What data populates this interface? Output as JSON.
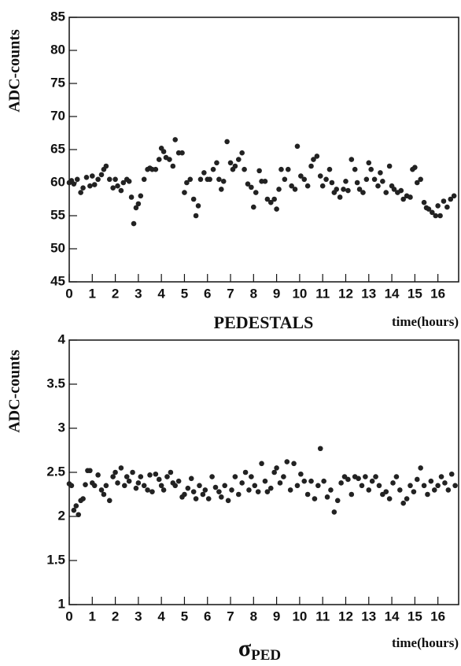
{
  "chart_data": [
    {
      "type": "scatter",
      "title": "PEDESTALS",
      "ylabel": "ADC-counts",
      "xlabel": "time(hours)",
      "color": "#222222",
      "xlim": [
        0,
        16.9
      ],
      "xticks": [
        0,
        1,
        2,
        3,
        4,
        5,
        6,
        7,
        8,
        9,
        10,
        11,
        12,
        13,
        14,
        15,
        16
      ],
      "ylim": [
        45,
        85
      ],
      "yticks": [
        45,
        50,
        55,
        60,
        65,
        70,
        75,
        80,
        85
      ],
      "x": [
        0.0,
        0.1,
        0.2,
        0.35,
        0.5,
        0.6,
        0.75,
        0.9,
        1.0,
        1.1,
        1.25,
        1.4,
        1.5,
        1.6,
        1.75,
        1.9,
        2.0,
        2.1,
        2.25,
        2.35,
        2.5,
        2.6,
        2.7,
        2.8,
        2.9,
        3.0,
        3.1,
        3.25,
        3.4,
        3.5,
        3.6,
        3.75,
        3.9,
        4.0,
        4.1,
        4.2,
        4.35,
        4.5,
        4.6,
        4.75,
        4.9,
        5.0,
        5.1,
        5.25,
        5.4,
        5.5,
        5.6,
        5.7,
        5.85,
        6.0,
        6.1,
        6.25,
        6.4,
        6.5,
        6.6,
        6.7,
        6.85,
        7.0,
        7.1,
        7.2,
        7.35,
        7.5,
        7.6,
        7.75,
        7.9,
        8.0,
        8.1,
        8.25,
        8.35,
        8.5,
        8.6,
        8.75,
        8.9,
        9.0,
        9.1,
        9.2,
        9.35,
        9.5,
        9.65,
        9.8,
        9.9,
        10.05,
        10.2,
        10.35,
        10.5,
        10.6,
        10.75,
        10.9,
        11.0,
        11.15,
        11.3,
        11.4,
        11.5,
        11.6,
        11.75,
        11.9,
        12.0,
        12.1,
        12.25,
        12.4,
        12.5,
        12.6,
        12.75,
        12.9,
        13.0,
        13.1,
        13.25,
        13.4,
        13.5,
        13.6,
        13.75,
        13.9,
        14.0,
        14.1,
        14.25,
        14.4,
        14.5,
        14.65,
        14.8,
        14.9,
        15.0,
        15.1,
        15.25,
        15.4,
        15.5,
        15.6,
        15.75,
        15.9,
        16.0,
        16.1,
        16.25,
        16.4,
        16.55,
        16.7
      ],
      "values": [
        60,
        60.3,
        59.8,
        60.5,
        58.5,
        59.2,
        60.8,
        59.5,
        61,
        59.7,
        60.5,
        61.2,
        62,
        62.5,
        60.5,
        59.2,
        60.5,
        59.5,
        58.8,
        60,
        60.5,
        60.2,
        57.8,
        53.8,
        56.2,
        56.8,
        58,
        60.5,
        62,
        62.2,
        62,
        62,
        63.5,
        65.2,
        64.7,
        63.8,
        63.5,
        62.5,
        66.5,
        64.5,
        64.5,
        58.5,
        60,
        60.5,
        57.5,
        55,
        56.5,
        60.5,
        61.5,
        60.5,
        60.5,
        62,
        63,
        60.5,
        59,
        60.2,
        66.2,
        63,
        62,
        62.5,
        63.5,
        64.5,
        62,
        59.8,
        59.3,
        56.3,
        58.5,
        61.8,
        60.2,
        60.2,
        57.5,
        57,
        57.5,
        56,
        59,
        62,
        60.5,
        62,
        59.5,
        59,
        65.5,
        61,
        60.5,
        59.5,
        62.5,
        63.5,
        64,
        61,
        59.5,
        60.5,
        62,
        60,
        58.5,
        59,
        57.8,
        59,
        60.2,
        58.8,
        63.5,
        62,
        60,
        59,
        58.5,
        60.5,
        63,
        62,
        60.5,
        59.5,
        61.5,
        60.2,
        58.5,
        62.5,
        59.5,
        59,
        58.5,
        58.8,
        57.5,
        58,
        57.8,
        62,
        62.3,
        60,
        60.5,
        57,
        56.2,
        56,
        55.5,
        55,
        56.5,
        55,
        57.2,
        56.3,
        57.5,
        58
      ]
    },
    {
      "type": "scatter",
      "title": "σ",
      "title_subscript": "PED",
      "ylabel": "ADC-counts",
      "xlabel": "time(hours)",
      "color": "#222222",
      "xlim": [
        0,
        16.9
      ],
      "xticks": [
        0,
        1,
        2,
        3,
        4,
        5,
        6,
        7,
        8,
        9,
        10,
        11,
        12,
        13,
        14,
        15,
        16
      ],
      "ylim": [
        1,
        4
      ],
      "yticks": [
        1,
        1.5,
        2,
        2.5,
        3,
        3.5,
        4
      ],
      "x": [
        0.0,
        0.1,
        0.2,
        0.3,
        0.4,
        0.5,
        0.6,
        0.7,
        0.8,
        0.9,
        1.0,
        1.1,
        1.25,
        1.4,
        1.5,
        1.6,
        1.75,
        1.9,
        2.0,
        2.1,
        2.25,
        2.4,
        2.5,
        2.6,
        2.75,
        2.9,
        3.0,
        3.1,
        3.25,
        3.4,
        3.5,
        3.6,
        3.75,
        3.9,
        4.0,
        4.1,
        4.25,
        4.4,
        4.5,
        4.6,
        4.75,
        4.9,
        5.0,
        5.15,
        5.3,
        5.4,
        5.5,
        5.65,
        5.8,
        5.9,
        6.05,
        6.2,
        6.35,
        6.5,
        6.6,
        6.75,
        6.9,
        7.05,
        7.2,
        7.35,
        7.5,
        7.65,
        7.8,
        7.9,
        8.05,
        8.2,
        8.35,
        8.5,
        8.6,
        8.75,
        8.9,
        9.0,
        9.15,
        9.3,
        9.45,
        9.6,
        9.75,
        9.9,
        10.05,
        10.2,
        10.35,
        10.5,
        10.65,
        10.8,
        10.9,
        11.05,
        11.2,
        11.35,
        11.5,
        11.65,
        11.8,
        11.95,
        12.1,
        12.25,
        12.4,
        12.55,
        12.7,
        12.85,
        13.0,
        13.15,
        13.3,
        13.45,
        13.6,
        13.75,
        13.9,
        14.05,
        14.2,
        14.35,
        14.5,
        14.65,
        14.8,
        14.95,
        15.1,
        15.25,
        15.4,
        15.55,
        15.7,
        15.85,
        16.0,
        16.15,
        16.3,
        16.45,
        16.6,
        16.75
      ],
      "values": [
        2.37,
        2.35,
        2.07,
        2.12,
        2.02,
        2.18,
        2.2,
        2.36,
        2.52,
        2.52,
        2.38,
        2.35,
        2.47,
        2.3,
        2.25,
        2.35,
        2.18,
        2.45,
        2.5,
        2.38,
        2.55,
        2.35,
        2.45,
        2.4,
        2.5,
        2.32,
        2.38,
        2.45,
        2.35,
        2.3,
        2.47,
        2.28,
        2.48,
        2.42,
        2.35,
        2.3,
        2.45,
        2.5,
        2.38,
        2.35,
        2.4,
        2.22,
        2.25,
        2.32,
        2.43,
        2.28,
        2.2,
        2.35,
        2.25,
        2.3,
        2.2,
        2.45,
        2.33,
        2.28,
        2.22,
        2.35,
        2.18,
        2.3,
        2.45,
        2.25,
        2.38,
        2.5,
        2.3,
        2.45,
        2.35,
        2.28,
        2.6,
        2.4,
        2.28,
        2.32,
        2.5,
        2.55,
        2.38,
        2.45,
        2.62,
        2.3,
        2.6,
        2.35,
        2.48,
        2.4,
        2.25,
        2.4,
        2.2,
        2.35,
        2.77,
        2.4,
        2.22,
        2.3,
        2.05,
        2.18,
        2.38,
        2.45,
        2.42,
        2.25,
        2.45,
        2.43,
        2.35,
        2.45,
        2.3,
        2.4,
        2.45,
        2.35,
        2.25,
        2.28,
        2.2,
        2.38,
        2.45,
        2.3,
        2.15,
        2.2,
        2.35,
        2.28,
        2.42,
        2.55,
        2.35,
        2.25,
        2.4,
        2.3,
        2.35,
        2.45,
        2.38,
        2.3,
        2.48,
        2.35
      ]
    }
  ]
}
